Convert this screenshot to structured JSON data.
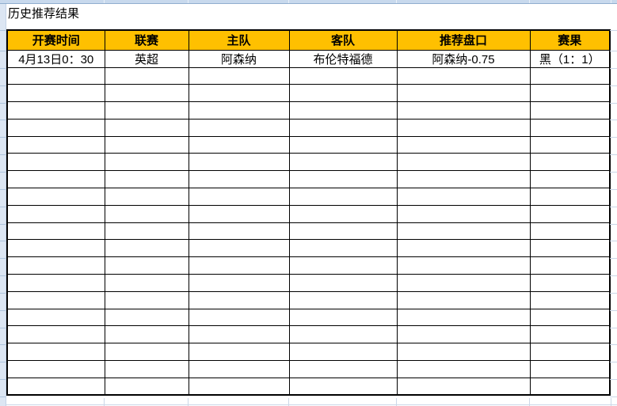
{
  "page": {
    "title": "历史推荐结果"
  },
  "table": {
    "columns": [
      "开赛时间",
      "联赛",
      "主队",
      "客队",
      "推荐盘口",
      "赛果"
    ],
    "rows": [
      [
        "4月13日0：30",
        "英超",
        "阿森纳",
        "布伦特福德",
        "阿森纳-0.75",
        "黑（1：1）"
      ]
    ],
    "empty_row_count": 19
  },
  "colors": {
    "header_bg": "#FFC000",
    "table_border": "#000000",
    "sheet_grid_blue": "#CBD7E8",
    "sheet_strip_blue": "#DCE6F3",
    "sheet_strip_top_blue": "#C8D9ED"
  }
}
